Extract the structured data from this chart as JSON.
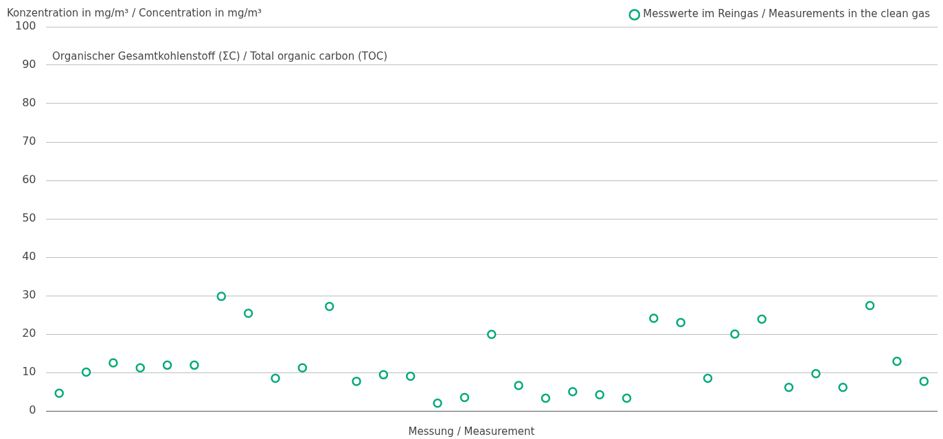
{
  "chart_data": {
    "type": "scatter",
    "title": "Organischer Gesamtkohlenstoff (ΣC) / Total organic carbon (TOC)",
    "ylabel": "Konzentration in mg/m³ / Concentration in mg/m³",
    "xlabel": "Messung / Measurement",
    "categories": [
      null,
      null,
      null,
      null,
      null,
      null,
      null,
      null,
      null,
      null,
      null,
      null,
      null,
      null,
      null,
      null,
      null,
      null,
      null,
      null,
      null,
      null,
      null,
      null,
      null,
      null,
      null,
      null,
      null,
      null,
      null,
      null,
      null
    ],
    "series": [
      {
        "name": "Messwerte im Reingas / Measurements in the clean gas",
        "color": "#00a97a",
        "values": [
          4.6,
          10.1,
          12.5,
          11.2,
          11.9,
          11.9,
          29.8,
          25.4,
          8.5,
          11.2,
          27.2,
          7.7,
          9.4,
          9.0,
          2.0,
          3.5,
          19.9,
          6.6,
          3.3,
          5.0,
          4.2,
          3.3,
          24.1,
          23.0,
          8.5,
          20.0,
          23.9,
          6.1,
          9.7,
          6.1,
          27.4,
          12.9,
          7.7
        ]
      }
    ],
    "ylim": [
      0,
      100
    ],
    "yticks": [
      0,
      10,
      20,
      30,
      40,
      50,
      60,
      70,
      80,
      90,
      100
    ],
    "grid": "y",
    "legend": "top right",
    "marker": "circle",
    "tick_labels": "y"
  }
}
